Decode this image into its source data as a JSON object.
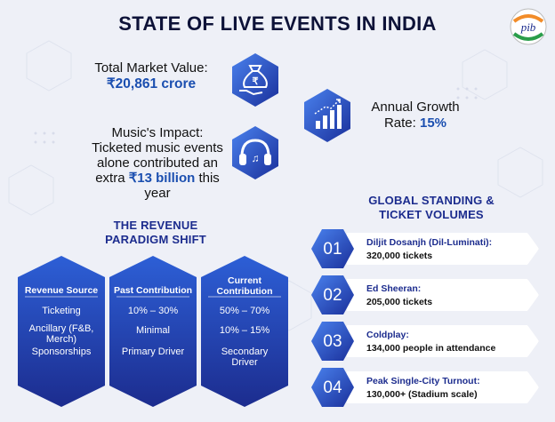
{
  "title": "STATE OF LIVE EVENTS IN INDIA",
  "logo_text": "pib",
  "stats": {
    "market_label": "Total Market Value:",
    "market_value": "₹20,861 crore",
    "growth_label_1": "Annual Growth",
    "growth_label_2": "Rate:",
    "growth_value": "15%",
    "music_line1": "Music's Impact:",
    "music_line2": "Ticketed music events",
    "music_line3": "alone contributed an",
    "music_line4a": "extra",
    "music_value": "₹13 billion",
    "music_line4b": "this year"
  },
  "revenue": {
    "title_line1": "THE REVENUE",
    "title_line2": "PARADIGM SHIFT",
    "columns": [
      {
        "header": "Revenue Source",
        "cells": [
          "Ticketing",
          "Ancillary (F&B, Merch)",
          "Sponsorships"
        ]
      },
      {
        "header": "Past Contribution",
        "cells": [
          "10% – 30%",
          "Minimal",
          "Primary Driver"
        ]
      },
      {
        "header": "Current Contribution",
        "cells": [
          "50% – 70%",
          "10% – 15%",
          "Secondary Driver"
        ]
      }
    ]
  },
  "global": {
    "title_line1": "GLOBAL STANDING &",
    "title_line2": "TICKET VOLUMES",
    "items": [
      {
        "num": "01",
        "name": "Diljit Dosanjh (Dil-Luminati):",
        "value": "320,000 tickets"
      },
      {
        "num": "02",
        "name": "Ed Sheeran:",
        "value": "205,000 tickets"
      },
      {
        "num": "03",
        "name": "Coldplay:",
        "value": "134,000 people in attendance"
      },
      {
        "num": "04",
        "name": "Peak Single-City Turnout:",
        "value": "130,000+ (Stadium scale)"
      }
    ]
  },
  "colors": {
    "dark_blue": "#1c2c8e",
    "accent_blue": "#1b4fb0",
    "hex_grad_light": "#3f78e8",
    "hex_grad_dark": "#1a2f9a"
  }
}
